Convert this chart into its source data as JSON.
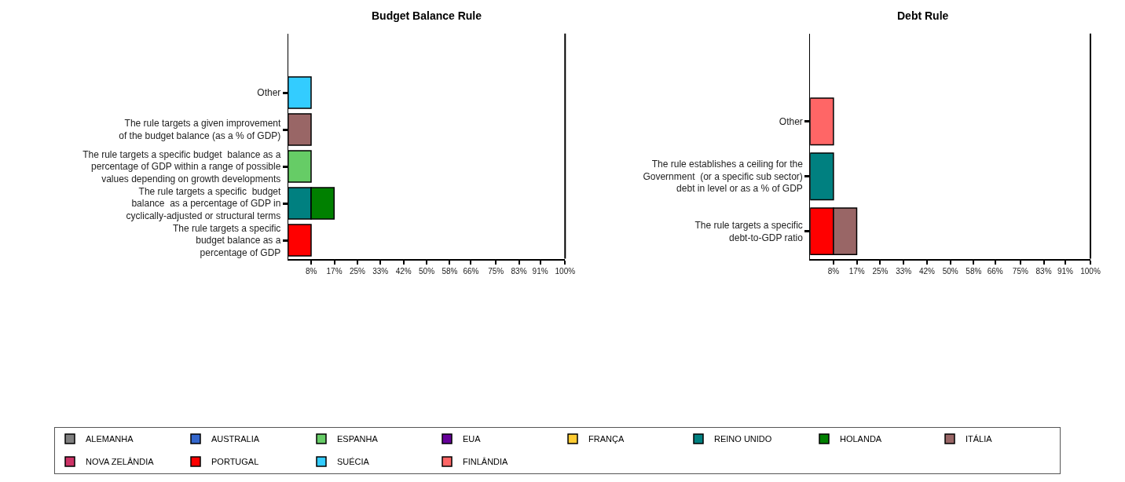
{
  "chart_data": [
    {
      "type": "bar",
      "orientation": "horizontal",
      "stacked": true,
      "title": "Budget Balance Rule",
      "legend": "bottom",
      "categories": [
        "Other",
        "The rule targets a given improvement\nof the budget balance (as a % of GDP)",
        "The rule targets a specific budget  balance as a\npercentage of GDP within a range of possible\nvalues depending on growth developments",
        "The rule targets a specific  budget\nbalance  as a percentage of GDP in\ncyclically-adjusted or structural terms",
        "The rule targets a specific\nbudget balance as a\npercentage of GDP"
      ],
      "xlim": [
        0,
        100
      ],
      "xticks": [
        {
          "value": 8.33,
          "label": "8%"
        },
        {
          "value": 16.67,
          "label": "17%"
        },
        {
          "value": 25,
          "label": "25%"
        },
        {
          "value": 33.33,
          "label": "33%"
        },
        {
          "value": 41.67,
          "label": "42%"
        },
        {
          "value": 50,
          "label": "50%"
        },
        {
          "value": 58.33,
          "label": "58%"
        },
        {
          "value": 66,
          "label": "66%"
        },
        {
          "value": 75,
          "label": "75%"
        },
        {
          "value": 83.33,
          "label": "83%"
        },
        {
          "value": 91,
          "label": "91%"
        },
        {
          "value": 100,
          "label": "100%"
        }
      ],
      "series": [
        {
          "name": "ALEMANHA",
          "color": "#808080",
          "values": [
            null,
            null,
            null,
            null,
            null
          ]
        },
        {
          "name": "AUSTRALIA",
          "color": "#3366cc",
          "values": [
            null,
            null,
            null,
            null,
            null
          ]
        },
        {
          "name": "ESPANHA",
          "color": "#66cc66",
          "values": [
            null,
            null,
            8.3,
            null,
            null
          ]
        },
        {
          "name": "EUA",
          "color": "#660099",
          "values": [
            null,
            null,
            null,
            null,
            null
          ]
        },
        {
          "name": "FRANÇA",
          "color": "#ffcc33",
          "values": [
            null,
            null,
            null,
            null,
            null
          ]
        },
        {
          "name": "REINO UNIDO",
          "color": "#008080",
          "values": [
            null,
            null,
            null,
            8.3,
            null
          ]
        },
        {
          "name": "HOLANDA",
          "color": "#008000",
          "values": [
            null,
            null,
            null,
            8.3,
            null
          ]
        },
        {
          "name": "ITÁLIA",
          "color": "#996666",
          "values": [
            null,
            8.3,
            null,
            null,
            null
          ]
        },
        {
          "name": "NOVA ZELÂNDIA",
          "color": "#cc3366",
          "values": [
            null,
            null,
            null,
            null,
            null
          ]
        },
        {
          "name": "PORTUGAL",
          "color": "#ff0000",
          "values": [
            null,
            null,
            null,
            null,
            8.3
          ]
        },
        {
          "name": "SUÉCIA",
          "color": "#33ccff",
          "values": [
            8.3,
            null,
            null,
            null,
            null
          ]
        }
      ]
    },
    {
      "type": "bar",
      "orientation": "horizontal",
      "stacked": true,
      "title": "Debt Rule",
      "legend": "bottom",
      "categories": [
        "Other",
        "The rule establishes a ceiling for the\nGovernment  (or a specific sub sector)\ndebt in level or as a % of GDP",
        "The rule targets a specific\ndebt-to-GDP ratio"
      ],
      "xlim": [
        0,
        100
      ],
      "xticks": [
        {
          "value": 8.33,
          "label": "8%"
        },
        {
          "value": 16.67,
          "label": "17%"
        },
        {
          "value": 25,
          "label": "25%"
        },
        {
          "value": 33.33,
          "label": "33%"
        },
        {
          "value": 41.67,
          "label": "42%"
        },
        {
          "value": 50,
          "label": "50%"
        },
        {
          "value": 58.33,
          "label": "58%"
        },
        {
          "value": 66,
          "label": "66%"
        },
        {
          "value": 75,
          "label": "75%"
        },
        {
          "value": 83.33,
          "label": "83%"
        },
        {
          "value": 91,
          "label": "91%"
        },
        {
          "value": 100,
          "label": "100%"
        }
      ],
      "series": [
        {
          "name": "FINLÂNDIA",
          "color": "#ff6666",
          "values": [
            8.3,
            null,
            null
          ]
        },
        {
          "name": "REINO UNIDO",
          "color": "#008080",
          "values": [
            null,
            8.3,
            null
          ]
        },
        {
          "name": "PORTUGAL",
          "color": "#ff0000",
          "values": [
            null,
            null,
            8.3
          ]
        },
        {
          "name": "ITÁLIA",
          "color": "#996666",
          "values": [
            null,
            null,
            8.3
          ]
        }
      ]
    }
  ]
}
